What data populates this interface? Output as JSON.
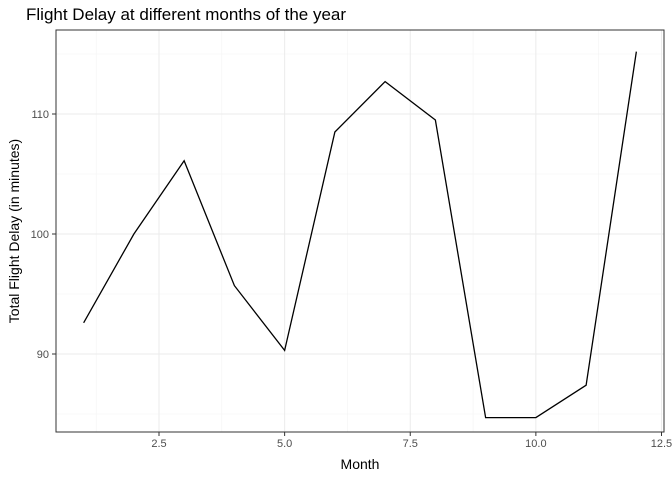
{
  "chart_data": {
    "type": "line",
    "title": "Flight Delay at different months of the year",
    "xlabel": "Month",
    "ylabel": "Total Flight Delay (in minutes)",
    "x": [
      1,
      2,
      3,
      4,
      5,
      6,
      7,
      8,
      9,
      10,
      11,
      12
    ],
    "values": [
      92.6,
      100.0,
      106.1,
      95.7,
      90.3,
      108.5,
      112.7,
      109.5,
      84.7,
      84.7,
      87.4,
      115.2
    ],
    "xlim": [
      0.45,
      12.55
    ],
    "ylim": [
      83.5,
      117.0
    ],
    "x_ticks": [
      2.5,
      5.0,
      7.5,
      10.0,
      12.5
    ],
    "x_tick_labels": [
      "2.5",
      "5.0",
      "7.5",
      "10.0",
      "12.5"
    ],
    "y_ticks": [
      90,
      100,
      110
    ],
    "y_tick_labels": [
      "90",
      "100",
      "110"
    ],
    "x_minor_ticks": [
      1.25,
      3.75,
      6.25,
      8.75,
      11.25
    ],
    "y_minor_ticks": [
      85,
      95,
      105,
      115
    ],
    "grid": true,
    "line_color": "#000000"
  }
}
